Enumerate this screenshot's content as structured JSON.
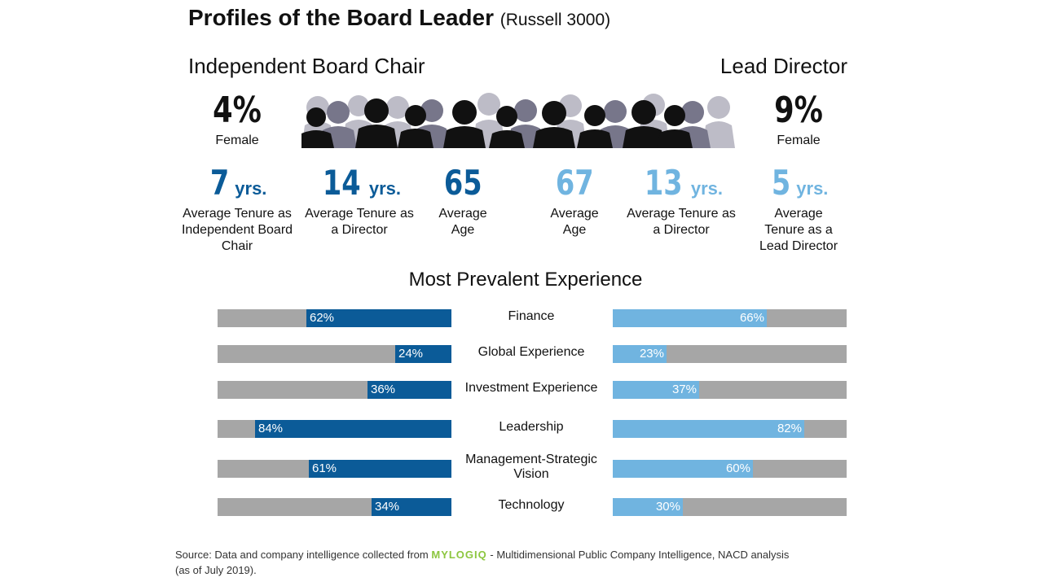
{
  "title": "Profiles of the Board Leader",
  "subtitle": "(Russell 3000)",
  "colors": {
    "ic": "#0b5b98",
    "ld": "#70b4e0",
    "bg_bar": "#a6a6a6"
  },
  "independent_chair": {
    "heading": "Independent Board Chair",
    "female_pct": "4%",
    "female_label": "Female",
    "stats": [
      {
        "num": "7",
        "unit": "yrs.",
        "caption": "Average Tenure as Independent Board Chair"
      },
      {
        "num": "14",
        "unit": "yrs.",
        "caption": "Average Tenure as a Director"
      },
      {
        "num": "65",
        "unit": "",
        "caption": "Average Age"
      }
    ]
  },
  "lead_director": {
    "heading": "Lead Director",
    "female_pct": "9%",
    "female_label": "Female",
    "stats": [
      {
        "num": "67",
        "unit": "",
        "caption": "Average Age"
      },
      {
        "num": "13",
        "unit": "yrs.",
        "caption": "Average Tenure as a Director"
      },
      {
        "num": "5",
        "unit": "yrs.",
        "caption": "Average Tenure as a Lead Director"
      }
    ]
  },
  "experience_title": "Most Prevalent Experience",
  "chart_data": {
    "type": "bar",
    "title": "Most Prevalent Experience",
    "categories": [
      "Finance",
      "Global Experience",
      "Investment Experience",
      "Leadership",
      "Management-Strategic Vision",
      "Technology"
    ],
    "series": [
      {
        "name": "Independent Board Chair",
        "values": [
          62,
          24,
          36,
          84,
          61,
          34
        ]
      },
      {
        "name": "Lead Director",
        "values": [
          66,
          23,
          37,
          82,
          60,
          30
        ]
      }
    ],
    "ylim": [
      0,
      100
    ]
  },
  "footer": {
    "line1_a": "Source: Data and company intelligence collected from",
    "logo": "MYLOGIQ",
    "line1_b": "- Multidimensional Public Company Intelligence, NACD analysis",
    "line2": "(as of July 2019)."
  }
}
